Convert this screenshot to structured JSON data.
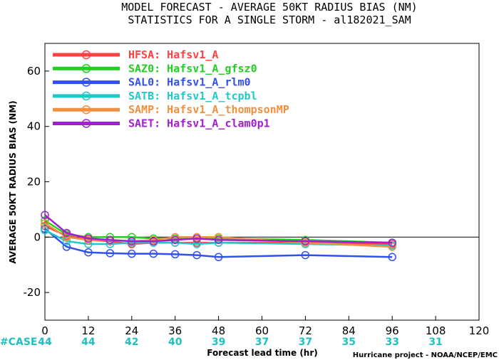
{
  "header": {
    "title_line1": "MODEL FORECAST - AVERAGE 50KT RADIUS BIAS (NM)",
    "title_line2": "STATISTICS FOR A SINGLE STORM - al182021_SAM"
  },
  "footer": {
    "case_label": "#CASE",
    "credit": "Hurricane project - NOAA/NCEP/EMC"
  },
  "chart_data": {
    "type": "line",
    "title": "MODEL FORECAST - AVERAGE 50KT RADIUS BIAS (NM)",
    "subtitle": "STATISTICS FOR A SINGLE STORM - al182021_SAM",
    "xlabel": "Forecast lead time (hr)",
    "ylabel": "AVERAGE 50KT RADIUS BIAS (NM)",
    "xlim": [
      0,
      120
    ],
    "ylim": [
      -30,
      70
    ],
    "xticks": [
      0,
      12,
      24,
      36,
      48,
      60,
      72,
      84,
      96,
      108,
      120
    ],
    "yticks": [
      -20,
      0,
      20,
      40,
      60
    ],
    "ytick_labels": [
      "-20",
      "0",
      "20",
      "40",
      "60"
    ],
    "zero_line": true,
    "legend_position": "top-left",
    "cases": [
      {
        "x": 0,
        "n": "44"
      },
      {
        "x": 12,
        "n": "44"
      },
      {
        "x": 24,
        "n": "42"
      },
      {
        "x": 36,
        "n": "40"
      },
      {
        "x": 48,
        "n": "39"
      },
      {
        "x": 60,
        "n": "37"
      },
      {
        "x": 72,
        "n": "37"
      },
      {
        "x": 84,
        "n": "35"
      },
      {
        "x": 96,
        "n": "33"
      },
      {
        "x": 108,
        "n": "31"
      }
    ],
    "series": [
      {
        "name": "HFSA: Hafsv1_A",
        "color": "#ff4040",
        "x": [
          0,
          6,
          12,
          18,
          24,
          30,
          36,
          42,
          48,
          72,
          96
        ],
        "values": [
          4,
          0.5,
          -1,
          -1.5,
          -2.5,
          -2,
          -2,
          -2,
          -2,
          -2,
          -2.5
        ]
      },
      {
        "name": "SAZ0: Hafsv1_A_gfsz0",
        "color": "#20d020",
        "x": [
          0,
          6,
          12,
          18,
          24,
          30,
          36,
          42,
          48,
          72,
          96
        ],
        "values": [
          6,
          1,
          0,
          0,
          0,
          -0.5,
          -0.5,
          -0.5,
          -0.5,
          -1,
          -2
        ]
      },
      {
        "name": "SAL0: Hafsv1_A_rlm0",
        "color": "#3050f0",
        "x": [
          0,
          6,
          12,
          18,
          24,
          30,
          36,
          42,
          48,
          72,
          96
        ],
        "values": [
          3,
          -3.5,
          -5.5,
          -5.8,
          -6,
          -6,
          -6.2,
          -6.5,
          -7.2,
          -6.5,
          -7.2
        ]
      },
      {
        "name": "SATB: Hafsv1_A_tcpbl",
        "color": "#20c8c8",
        "x": [
          0,
          6,
          12,
          18,
          24,
          30,
          36,
          42,
          48,
          72,
          96
        ],
        "values": [
          2.5,
          -1.5,
          -2.5,
          -2.5,
          -2,
          -2,
          -2,
          -2.5,
          -2,
          -2.5,
          -3
        ]
      },
      {
        "name": "SAMP: Hafsv1_A_thompsonMP",
        "color": "#f09040",
        "x": [
          0,
          6,
          12,
          18,
          24,
          30,
          36,
          42,
          48,
          72,
          96
        ],
        "values": [
          5,
          0,
          -1,
          -1,
          -1.5,
          -1,
          0,
          0,
          0,
          -2,
          -3.5
        ]
      },
      {
        "name": "SAET: Hafsv1_A_clam0p1",
        "color": "#a020d0",
        "x": [
          0,
          6,
          12,
          18,
          24,
          30,
          36,
          42,
          48,
          72,
          96
        ],
        "values": [
          8,
          1.5,
          -0.5,
          -1,
          -1.5,
          -1.5,
          -1,
          -0.5,
          -1,
          -1.5,
          -2
        ]
      }
    ]
  }
}
